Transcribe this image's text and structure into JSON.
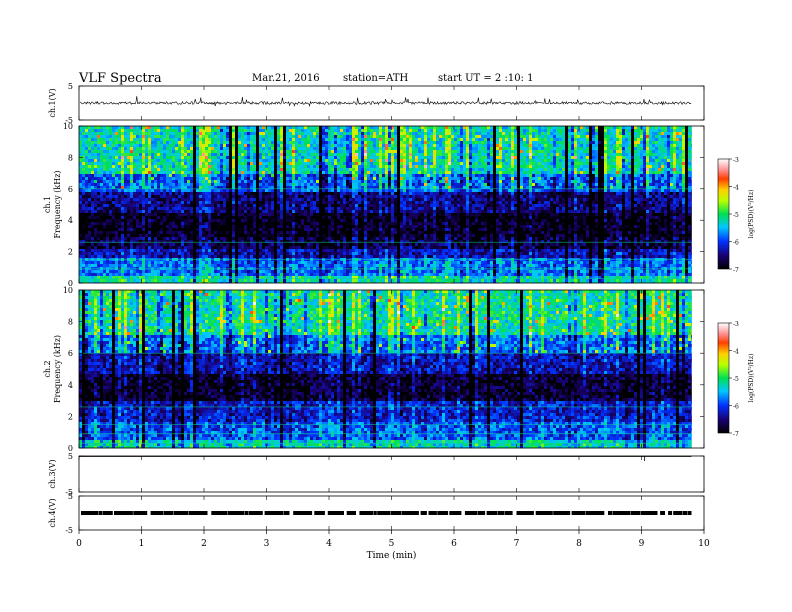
{
  "header": {
    "title": "VLF Spectra",
    "date": "Mar.21, 2016",
    "station": "station=ATH",
    "start_time": "start UT =  2 :10: 1"
  },
  "chart_data": [
    {
      "type": "line",
      "panel": "ch1-waveform",
      "ylabel": "ch.1(V)",
      "yticks": [
        "5",
        "-5"
      ],
      "ylim": [
        -5,
        5
      ],
      "xlim": [
        0,
        10
      ],
      "description_values": {
        "baseline": 0.0,
        "noise_amplitude": 0.4,
        "spike_amplitude": 1.5,
        "data_end_min": 9.8
      },
      "color": "#000000"
    },
    {
      "type": "heatmap",
      "panel": "ch1-spectrogram",
      "ylabel": "ch.1\nFrequency (kHz)",
      "ylabel_lines": [
        "ch.1",
        "Frequency (kHz)"
      ],
      "yticks": [
        "0",
        "2",
        "4",
        "6",
        "8",
        "10"
      ],
      "ylim": [
        0,
        10
      ],
      "xlim": [
        0,
        10
      ],
      "data_end_min": 9.8,
      "bands_logpsd": [
        {
          "f0": 0.0,
          "f1": 0.4,
          "level": -5.2
        },
        {
          "f0": 0.4,
          "f1": 1.5,
          "level": -5.8
        },
        {
          "f0": 1.5,
          "f1": 2.2,
          "level": -6.3
        },
        {
          "f0": 2.2,
          "f1": 3.0,
          "level": -6.7
        },
        {
          "f0": 3.0,
          "f1": 4.5,
          "level": -6.9
        },
        {
          "f0": 4.5,
          "f1": 5.8,
          "level": -6.5
        },
        {
          "f0": 5.8,
          "f1": 7.0,
          "level": -5.9
        },
        {
          "f0": 7.0,
          "f1": 10.0,
          "level": -5.3
        }
      ],
      "colorbar": {
        "label": "log(PSD)(V²/Hz)",
        "ticks": [
          "-3",
          "-4",
          "-5",
          "-6",
          "-7"
        ],
        "range": [
          -7,
          -3
        ]
      }
    },
    {
      "type": "heatmap",
      "panel": "ch2-spectrogram",
      "ylabel": "ch.2\nFrequency (kHz)",
      "ylabel_lines": [
        "ch.2",
        "Frequency (kHz)"
      ],
      "yticks": [
        "0",
        "2",
        "4",
        "6",
        "8",
        "10"
      ],
      "ylim": [
        0,
        10
      ],
      "xlim": [
        0,
        10
      ],
      "data_end_min": 9.8,
      "bands_logpsd": [
        {
          "f0": 0.0,
          "f1": 0.5,
          "level": -5.3
        },
        {
          "f0": 0.5,
          "f1": 1.7,
          "level": -5.9
        },
        {
          "f0": 1.7,
          "f1": 3.0,
          "level": -6.2
        },
        {
          "f0": 3.0,
          "f1": 4.6,
          "level": -6.8
        },
        {
          "f0": 4.6,
          "f1": 6.0,
          "level": -6.3
        },
        {
          "f0": 6.0,
          "f1": 7.2,
          "level": -5.8
        },
        {
          "f0": 7.2,
          "f1": 10.0,
          "level": -5.2
        }
      ],
      "colorbar": {
        "label": "log(PSD)(V²/Hz)",
        "ticks": [
          "-3",
          "-4",
          "-5",
          "-6",
          "-7"
        ],
        "range": [
          -7,
          -3
        ]
      }
    },
    {
      "type": "line",
      "panel": "ch3-waveform",
      "ylabel": "ch.3(V)",
      "yticks": [
        "5",
        "-5"
      ],
      "ylim": [
        -5,
        5
      ],
      "xlim": [
        0,
        10
      ],
      "description_values": {
        "baseline": 5.0,
        "data_end_min": 9.8
      },
      "color": "#000000"
    },
    {
      "type": "line",
      "panel": "ch4-waveform",
      "ylabel": "ch.4(V)",
      "yticks": [
        "5",
        "-5"
      ],
      "ylim": [
        -5,
        5
      ],
      "xlim": [
        0,
        10
      ],
      "description_values": {
        "baseline": 0.0,
        "data_end_min": 9.8
      },
      "color": "#000000"
    }
  ],
  "x_axis": {
    "label": "Time  (min)",
    "ticks": [
      "0",
      "1",
      "2",
      "3",
      "4",
      "5",
      "6",
      "7",
      "8",
      "9",
      "10"
    ],
    "range": [
      0,
      10
    ]
  }
}
